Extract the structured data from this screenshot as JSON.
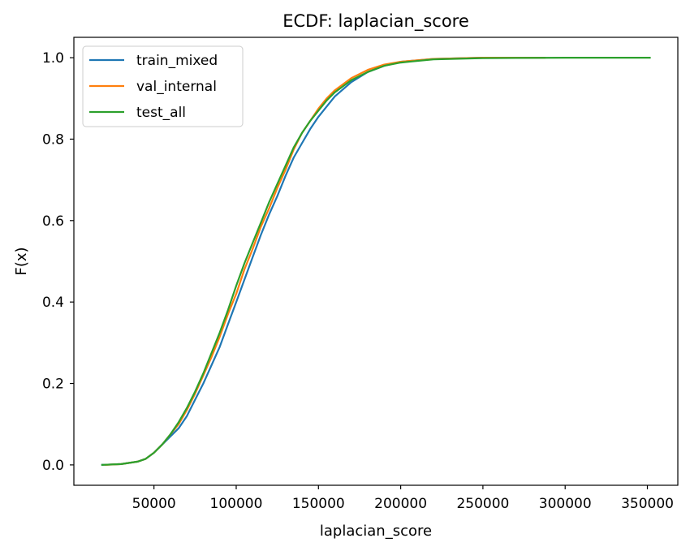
{
  "chart_data": {
    "type": "line",
    "title": "ECDF: laplacian_score",
    "xlabel": "laplacian_score",
    "ylabel": "F(x)",
    "xlim": [
      1300,
      368500
    ],
    "ylim": [
      -0.05,
      1.05
    ],
    "xticks": [
      50000,
      100000,
      150000,
      200000,
      250000,
      300000,
      350000
    ],
    "yticks": [
      0.0,
      0.2,
      0.4,
      0.6,
      0.8,
      1.0
    ],
    "xtick_labels": [
      "50000",
      "100000",
      "150000",
      "200000",
      "250000",
      "300000",
      "350000"
    ],
    "ytick_labels": [
      "0.0",
      "0.2",
      "0.4",
      "0.6",
      "0.8",
      "1.0"
    ],
    "grid": false,
    "legend_position": "top-left",
    "series": [
      {
        "name": "train_mixed",
        "color": "#1f77b4",
        "points": [
          [
            18000,
            0.0
          ],
          [
            30000,
            0.002
          ],
          [
            40000,
            0.008
          ],
          [
            45000,
            0.015
          ],
          [
            50000,
            0.03
          ],
          [
            55000,
            0.05
          ],
          [
            60000,
            0.07
          ],
          [
            65000,
            0.09
          ],
          [
            70000,
            0.12
          ],
          [
            75000,
            0.16
          ],
          [
            80000,
            0.2
          ],
          [
            85000,
            0.245
          ],
          [
            90000,
            0.29
          ],
          [
            95000,
            0.345
          ],
          [
            100000,
            0.4
          ],
          [
            105000,
            0.455
          ],
          [
            110000,
            0.51
          ],
          [
            115000,
            0.565
          ],
          [
            120000,
            0.615
          ],
          [
            125000,
            0.66
          ],
          [
            130000,
            0.71
          ],
          [
            135000,
            0.755
          ],
          [
            140000,
            0.79
          ],
          [
            145000,
            0.825
          ],
          [
            150000,
            0.855
          ],
          [
            155000,
            0.88
          ],
          [
            160000,
            0.905
          ],
          [
            170000,
            0.94
          ],
          [
            180000,
            0.965
          ],
          [
            190000,
            0.98
          ],
          [
            200000,
            0.99
          ],
          [
            220000,
            0.997
          ],
          [
            250000,
            1.0
          ],
          [
            288000,
            1.0
          ]
        ]
      },
      {
        "name": "val_internal",
        "color": "#ff7f0e",
        "points": [
          [
            20000,
            0.0
          ],
          [
            30000,
            0.002
          ],
          [
            40000,
            0.008
          ],
          [
            45000,
            0.015
          ],
          [
            50000,
            0.03
          ],
          [
            55000,
            0.05
          ],
          [
            60000,
            0.075
          ],
          [
            65000,
            0.1
          ],
          [
            70000,
            0.135
          ],
          [
            75000,
            0.175
          ],
          [
            80000,
            0.22
          ],
          [
            85000,
            0.265
          ],
          [
            90000,
            0.315
          ],
          [
            95000,
            0.37
          ],
          [
            100000,
            0.42
          ],
          [
            105000,
            0.48
          ],
          [
            110000,
            0.53
          ],
          [
            115000,
            0.585
          ],
          [
            120000,
            0.63
          ],
          [
            125000,
            0.68
          ],
          [
            130000,
            0.725
          ],
          [
            135000,
            0.775
          ],
          [
            140000,
            0.815
          ],
          [
            145000,
            0.845
          ],
          [
            150000,
            0.875
          ],
          [
            155000,
            0.9
          ],
          [
            160000,
            0.92
          ],
          [
            170000,
            0.95
          ],
          [
            180000,
            0.97
          ],
          [
            190000,
            0.983
          ],
          [
            200000,
            0.99
          ],
          [
            220000,
            0.997
          ],
          [
            250000,
            1.0
          ],
          [
            288000,
            1.0
          ]
        ]
      },
      {
        "name": "test_all",
        "color": "#2ca02c",
        "points": [
          [
            18000,
            0.0
          ],
          [
            30000,
            0.002
          ],
          [
            40000,
            0.008
          ],
          [
            45000,
            0.015
          ],
          [
            50000,
            0.03
          ],
          [
            55000,
            0.05
          ],
          [
            60000,
            0.075
          ],
          [
            65000,
            0.105
          ],
          [
            70000,
            0.14
          ],
          [
            75000,
            0.18
          ],
          [
            80000,
            0.225
          ],
          [
            85000,
            0.275
          ],
          [
            90000,
            0.325
          ],
          [
            95000,
            0.38
          ],
          [
            100000,
            0.44
          ],
          [
            105000,
            0.495
          ],
          [
            110000,
            0.545
          ],
          [
            115000,
            0.595
          ],
          [
            120000,
            0.645
          ],
          [
            125000,
            0.69
          ],
          [
            130000,
            0.735
          ],
          [
            135000,
            0.78
          ],
          [
            140000,
            0.815
          ],
          [
            145000,
            0.845
          ],
          [
            150000,
            0.87
          ],
          [
            155000,
            0.895
          ],
          [
            160000,
            0.915
          ],
          [
            170000,
            0.945
          ],
          [
            180000,
            0.965
          ],
          [
            190000,
            0.98
          ],
          [
            200000,
            0.988
          ],
          [
            220000,
            0.996
          ],
          [
            250000,
            0.999
          ],
          [
            300000,
            1.0
          ],
          [
            352000,
            1.0
          ]
        ]
      }
    ]
  }
}
